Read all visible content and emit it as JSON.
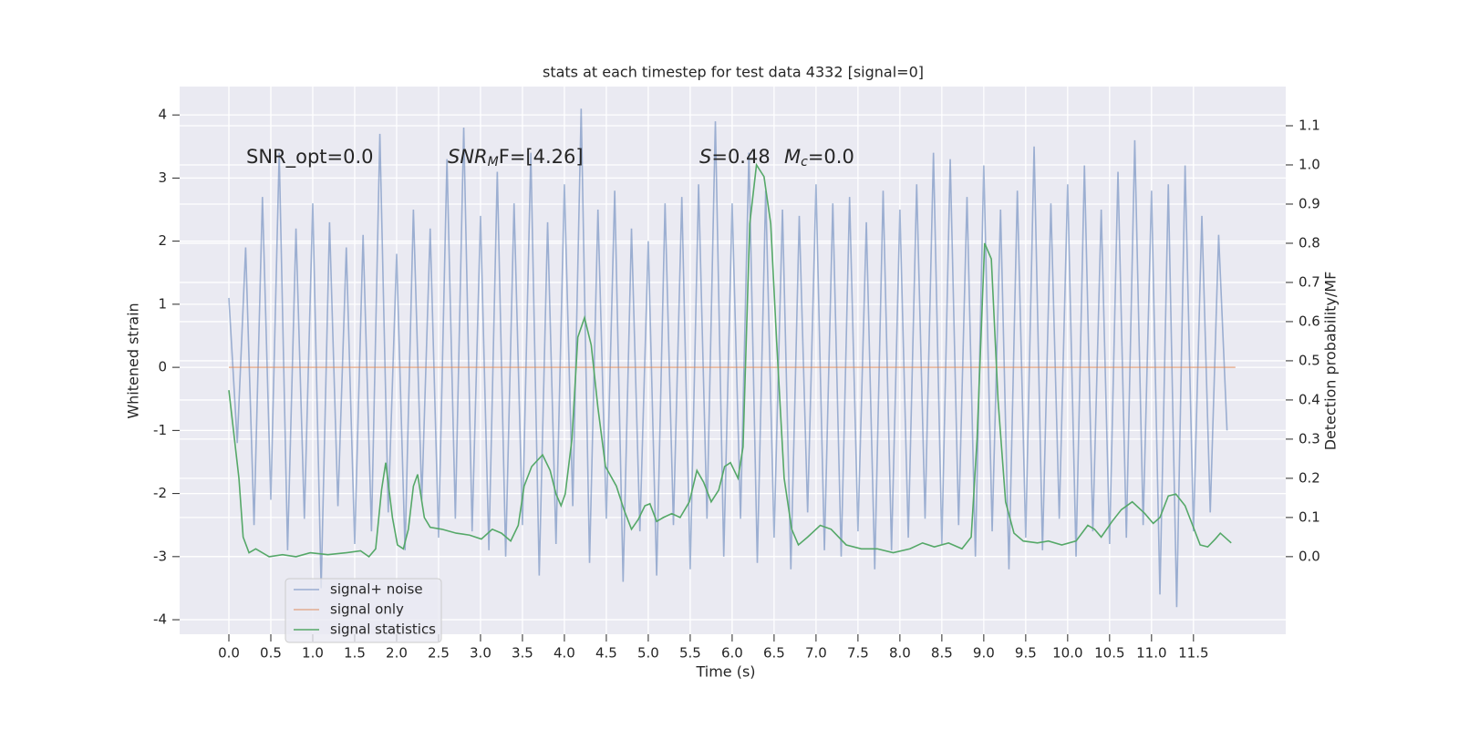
{
  "chart_data": {
    "type": "line",
    "title": "stats at each timestep for test data 4332 [signal=0]",
    "xlabel": "Time (s)",
    "ylabel": "Whitened strain",
    "y2label": "Detection probability/MF",
    "annotations": [
      {
        "parts": [
          "SNR_opt=0.0"
        ]
      },
      {
        "parts": [
          "SNR",
          "M",
          "F=[4.26]"
        ]
      },
      {
        "parts": [
          "S",
          "=0.48"
        ]
      },
      {
        "parts": [
          "M",
          "c",
          "=0.0"
        ]
      }
    ],
    "xlim": [
      -0.587,
      12.6
    ],
    "ylim": [
      -4.23,
      4.45
    ],
    "y2lim": [
      -0.198,
      1.2
    ],
    "xticks": [
      {
        "value": 0,
        "label": "0.0"
      },
      0.5,
      {
        "value": 1,
        "label": "1.0"
      },
      1.5,
      {
        "value": 2,
        "label": "2.0"
      },
      2.5,
      {
        "value": 3,
        "label": "3.0"
      },
      3.5,
      {
        "value": 4,
        "label": "4.0"
      },
      4.5,
      {
        "value": 5,
        "label": "5.0"
      },
      5.5,
      {
        "value": 6,
        "label": "6.0"
      },
      6.5,
      {
        "value": 7,
        "label": "7.0"
      },
      7.5,
      {
        "value": 8,
        "label": "8.0"
      },
      8.5,
      {
        "value": 9,
        "label": "9.0"
      },
      9.5,
      {
        "value": 10,
        "label": "10.0"
      },
      10.5,
      {
        "value": 11,
        "label": "11.0"
      },
      11.5
    ],
    "yticks": [
      -4,
      -3,
      -2,
      -1,
      0,
      1,
      2,
      3,
      4
    ],
    "y2ticks": [
      {
        "value": 0,
        "label": "0.0"
      },
      0.1,
      0.2,
      0.3,
      0.4,
      0.5,
      0.6,
      0.7,
      0.8,
      0.9,
      {
        "value": 1,
        "label": "1.0"
      },
      1.1
    ],
    "grid": true,
    "legend_loc": "lower left",
    "series": [
      {
        "name": "signal+ noise",
        "color": "#4c72b0",
        "x": [
          0,
          0.1,
          0.2,
          0.3,
          0.4,
          0.5,
          0.6,
          0.7,
          0.8,
          0.9,
          1,
          1.1,
          1.2,
          1.3,
          1.4,
          1.5,
          1.6,
          1.7,
          1.8,
          1.9,
          2,
          2.1,
          2.2,
          2.3,
          2.4,
          2.5,
          2.6,
          2.7,
          2.8,
          2.9,
          3,
          3.1,
          3.2,
          3.3,
          3.4,
          3.5,
          3.6,
          3.7,
          3.8,
          3.9,
          4,
          4.1,
          4.2,
          4.3,
          4.4,
          4.5,
          4.6,
          4.7,
          4.8,
          4.9,
          5,
          5.1,
          5.2,
          5.3,
          5.4,
          5.5,
          5.6,
          5.7,
          5.8,
          5.9,
          6,
          6.1,
          6.2,
          6.3,
          6.4,
          6.5,
          6.6,
          6.7,
          6.8,
          6.9,
          7,
          7.1,
          7.2,
          7.3,
          7.4,
          7.5,
          7.6,
          7.7,
          7.8,
          7.9,
          8,
          8.1,
          8.2,
          8.3,
          8.4,
          8.5,
          8.6,
          8.7,
          8.8,
          8.9,
          9,
          9.1,
          9.2,
          9.3,
          9.4,
          9.5,
          9.6,
          9.7,
          9.8,
          9.9,
          10,
          10.1,
          10.2,
          10.3,
          10.4,
          10.5,
          10.6,
          10.7,
          10.8,
          10.9,
          11,
          11.1,
          11.2,
          11.3,
          11.4,
          11.5,
          11.6,
          11.7,
          11.8,
          11.9
        ],
        "values": [
          1.1,
          -1.2,
          1.9,
          -2.5,
          2.7,
          -2.1,
          3.4,
          -2.9,
          2.2,
          -2.4,
          2.6,
          -3.5,
          2.3,
          -2.2,
          1.9,
          -2.8,
          2.1,
          -2.6,
          3.7,
          -2.3,
          1.8,
          -2.9,
          2.5,
          -2.1,
          2.2,
          -2.7,
          3.3,
          -2.4,
          3.8,
          -2.6,
          2.4,
          -2.9,
          3.1,
          -3.0,
          2.6,
          -2.5,
          3.4,
          -3.3,
          2.3,
          -2.8,
          2.9,
          -2.2,
          4.1,
          -3.1,
          2.5,
          -2.4,
          2.8,
          -3.4,
          2.2,
          -2.6,
          2.0,
          -3.3,
          2.6,
          -2.5,
          2.7,
          -3.2,
          2.9,
          -2.4,
          3.9,
          -3.0,
          2.6,
          -2.4,
          3.4,
          -3.1,
          2.8,
          -2.7,
          2.5,
          -3.2,
          2.4,
          -2.3,
          2.9,
          -2.9,
          2.6,
          -3.0,
          2.7,
          -2.6,
          2.3,
          -3.2,
          2.8,
          -2.9,
          2.5,
          -2.7,
          2.9,
          -2.4,
          3.4,
          -2.8,
          3.3,
          -2.5,
          2.7,
          -3.0,
          3.2,
          -2.6,
          2.5,
          -3.2,
          2.8,
          -2.7,
          3.5,
          -2.9,
          2.6,
          -2.4,
          2.9,
          -3.0,
          3.2,
          -2.6,
          2.5,
          -2.8,
          3.1,
          -2.7,
          3.6,
          -2.5,
          2.8,
          -3.6,
          2.9,
          -3.8,
          3.2,
          -2.6,
          2.4,
          -2.3,
          2.1,
          -1.0
        ]
      },
      {
        "name": "signal only",
        "color": "#dd8452",
        "x": [
          0,
          12.0
        ],
        "values": [
          0,
          0
        ]
      },
      {
        "name": "signal statistics",
        "color": "#55a868",
        "axis": "y2",
        "x": [
          0,
          0.12,
          0.17,
          0.24,
          0.32,
          0.48,
          0.64,
          0.8,
          0.97,
          1.18,
          1.4,
          1.57,
          1.67,
          1.75,
          1.82,
          1.87,
          1.95,
          2.01,
          2.08,
          2.14,
          2.2,
          2.25,
          2.33,
          2.4,
          2.54,
          2.71,
          2.87,
          3.01,
          3.14,
          3.25,
          3.36,
          3.45,
          3.52,
          3.61,
          3.74,
          3.83,
          3.9,
          3.96,
          4.01,
          4.09,
          4.16,
          4.24,
          4.32,
          4.4,
          4.49,
          4.62,
          4.71,
          4.8,
          4.88,
          4.96,
          5.02,
          5.1,
          5.18,
          5.28,
          5.38,
          5.49,
          5.58,
          5.66,
          5.75,
          5.84,
          5.91,
          5.98,
          6.07,
          6.13,
          6.21,
          6.29,
          6.38,
          6.46,
          6.53,
          6.62,
          6.71,
          6.79,
          6.9,
          7.05,
          7.18,
          7.36,
          7.54,
          7.73,
          7.92,
          8.12,
          8.27,
          8.41,
          8.58,
          8.74,
          8.85,
          8.92,
          9.01,
          9.09,
          9.17,
          9.26,
          9.36,
          9.47,
          9.64,
          9.77,
          9.93,
          10.1,
          10.24,
          10.32,
          10.4,
          10.53,
          10.64,
          10.77,
          10.92,
          11.02,
          11.1,
          11.2,
          11.29,
          11.4,
          11.49,
          11.58,
          11.67,
          11.76,
          11.82,
          11.95
        ],
        "values": [
          0.425,
          0.2,
          0.05,
          0.01,
          0.02,
          0.0,
          0.005,
          0.0,
          0.01,
          0.005,
          0.01,
          0.015,
          0.0,
          0.02,
          0.17,
          0.24,
          0.1,
          0.03,
          0.02,
          0.07,
          0.18,
          0.21,
          0.1,
          0.075,
          0.07,
          0.06,
          0.055,
          0.045,
          0.07,
          0.06,
          0.04,
          0.08,
          0.18,
          0.23,
          0.26,
          0.22,
          0.16,
          0.13,
          0.16,
          0.3,
          0.56,
          0.61,
          0.54,
          0.38,
          0.23,
          0.18,
          0.12,
          0.07,
          0.095,
          0.13,
          0.135,
          0.09,
          0.1,
          0.11,
          0.1,
          0.14,
          0.22,
          0.19,
          0.14,
          0.17,
          0.23,
          0.24,
          0.2,
          0.28,
          0.85,
          1.0,
          0.97,
          0.85,
          0.55,
          0.2,
          0.07,
          0.03,
          0.05,
          0.08,
          0.07,
          0.03,
          0.02,
          0.02,
          0.01,
          0.02,
          0.035,
          0.025,
          0.035,
          0.02,
          0.05,
          0.3,
          0.8,
          0.76,
          0.4,
          0.14,
          0.06,
          0.04,
          0.035,
          0.04,
          0.03,
          0.04,
          0.08,
          0.07,
          0.05,
          0.09,
          0.12,
          0.14,
          0.11,
          0.085,
          0.1,
          0.155,
          0.16,
          0.13,
          0.08,
          0.03,
          0.025,
          0.045,
          0.06,
          0.035
        ]
      }
    ]
  }
}
